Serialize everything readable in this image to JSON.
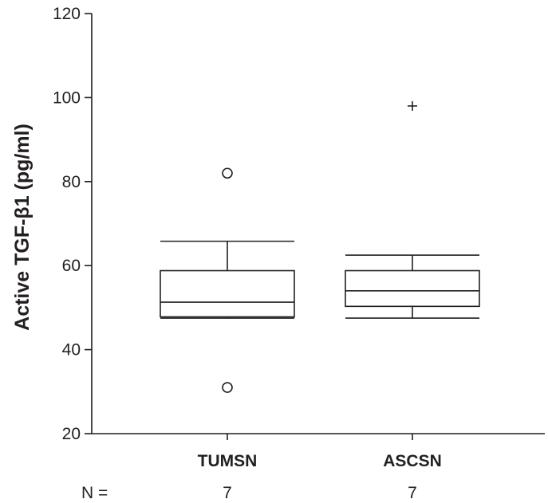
{
  "chart_data": {
    "type": "box",
    "title": "",
    "xlabel": "",
    "ylabel": "Active TGF-β1 (pg/ml)",
    "ylim": [
      20,
      120
    ],
    "yticks": [
      20,
      40,
      60,
      80,
      100,
      120
    ],
    "categories": [
      "TUMSN",
      "ASCSN"
    ],
    "n_label": "N =",
    "n_values": [
      "7",
      "7"
    ],
    "boxes": [
      {
        "name": "TUMSN",
        "whisker_low": 47.5,
        "q1": 47.8,
        "median": 51.3,
        "q3": 58.8,
        "whisker_high": 65.8,
        "outliers": [
          82,
          31
        ],
        "extremes": []
      },
      {
        "name": "ASCSN",
        "whisker_low": 47.5,
        "q1": 50.3,
        "median": 54.0,
        "q3": 58.8,
        "whisker_high": 62.5,
        "outliers": [],
        "extremes": [
          98
        ]
      }
    ],
    "grid": false,
    "legend": "none"
  }
}
